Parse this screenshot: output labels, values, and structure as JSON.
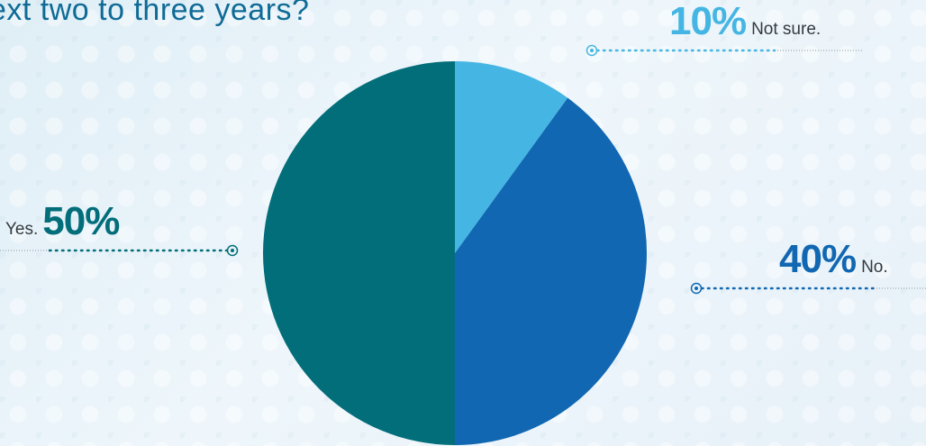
{
  "title": "ext two to three years?",
  "colors": {
    "yes": "#026e7a",
    "no": "#1167b1",
    "not_sure": "#45b6e3",
    "title": "#0f6b96"
  },
  "chart_data": {
    "type": "pie",
    "title": "ext two to three years?",
    "start_angle_deg": 0,
    "direction": "clockwise",
    "slices": [
      {
        "label": "Not sure.",
        "value": 10,
        "percent_label": "10%",
        "color": "#45b6e3"
      },
      {
        "label": "No.",
        "value": 40,
        "percent_label": "40%",
        "color": "#1167b1"
      },
      {
        "label": "Yes.",
        "value": 50,
        "percent_label": "50%",
        "color": "#026e7a"
      }
    ]
  }
}
